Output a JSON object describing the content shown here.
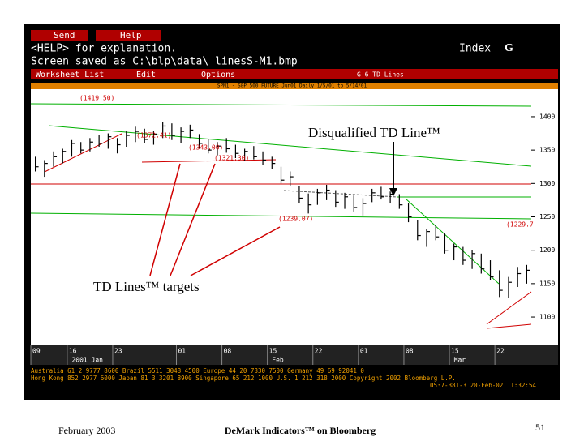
{
  "menu": {
    "send": "Send",
    "help": "Help"
  },
  "info_line": "<HELP> for explanation.",
  "saved_line": "Screen saved as C:\\blp\\data\\ linesS-M1.bmp",
  "index_label": "Index",
  "index_key": "G",
  "toolbar": {
    "worksheet": "Worksheet List",
    "edit": "Edit",
    "options": "Options",
    "page": "G 6   TD Lines"
  },
  "chart_data": {
    "type": "ohlc",
    "title": "SPM1 - S&P 500 FUTURE Jun01 Daily 1/5/01 to 5/14/01",
    "categories": [
      "09",
      null,
      null,
      null,
      "16",
      null,
      null,
      null,
      null,
      "23",
      null,
      null,
      null,
      null,
      null,
      null,
      "01",
      null,
      null,
      null,
      null,
      "08",
      null,
      null,
      null,
      null,
      "15",
      null,
      null,
      null,
      null,
      "22",
      null,
      null,
      null,
      null,
      "01",
      null,
      null,
      null,
      null,
      "08",
      null,
      null,
      null,
      null,
      "15",
      null,
      null,
      null,
      null,
      "22",
      null,
      null,
      null
    ],
    "x_group_labels": [
      {
        "label": "2001 Jan",
        "index": 4
      },
      {
        "label": "Feb",
        "index": 26
      },
      {
        "label": "Mar",
        "index": 46
      }
    ],
    "high": [
      1340,
      1335,
      1348,
      1352,
      1365,
      1362,
      1368,
      1372,
      1375,
      1368,
      1378,
      1385,
      1382,
      1378,
      1392,
      1390,
      1384,
      1388,
      1374,
      1366,
      1362,
      1368,
      1358,
      1352,
      1356,
      1348,
      1340,
      1325,
      1318,
      1296,
      1285,
      1292,
      1298,
      1290,
      1286,
      1282,
      1278,
      1292,
      1295,
      1288,
      1284,
      1270,
      1245,
      1232,
      1238,
      1225,
      1210,
      1205,
      1200,
      1195,
      1185,
      1170,
      1160,
      1175,
      1178
    ],
    "low": [
      1318,
      1310,
      1325,
      1330,
      1340,
      1345,
      1348,
      1355,
      1352,
      1345,
      1355,
      1362,
      1360,
      1358,
      1368,
      1365,
      1360,
      1368,
      1352,
      1345,
      1342,
      1346,
      1338,
      1334,
      1336,
      1328,
      1322,
      1300,
      1296,
      1270,
      1255,
      1268,
      1275,
      1265,
      1262,
      1258,
      1252,
      1272,
      1276,
      1270,
      1262,
      1242,
      1215,
      1205,
      1215,
      1195,
      1185,
      1178,
      1172,
      1165,
      1155,
      1130,
      1128,
      1145,
      1150
    ],
    "close": [
      1325,
      1330,
      1340,
      1348,
      1360,
      1350,
      1362,
      1360,
      1370,
      1358,
      1372,
      1378,
      1366,
      1374,
      1386,
      1372,
      1378,
      1380,
      1360,
      1350,
      1356,
      1352,
      1345,
      1348,
      1340,
      1335,
      1330,
      1305,
      1310,
      1278,
      1268,
      1286,
      1290,
      1272,
      1280,
      1264,
      1270,
      1286,
      1280,
      1284,
      1268,
      1250,
      1222,
      1228,
      1220,
      1200,
      1205,
      1185,
      1195,
      1172,
      1160,
      1140,
      1152,
      1165,
      1170
    ],
    "color": "#000000",
    "ylim": [
      1060,
      1440
    ],
    "yticks": [
      1100,
      1150,
      1200,
      1250,
      1300,
      1350,
      1400
    ],
    "targets": [
      "(1419.50)",
      "(1372.41)",
      "(1343.00)",
      "(1321.30)",
      "(1239.07)",
      "(1229.7"
    ]
  },
  "footer_lines": [
    "Australia 61 2 9777 8600   Brazil 5511 3048 4500   Europe 44 20 7330 7500   Germany 49 69 92041 0",
    "Hong Kong 852 2977 6000 Japan 81 3 3201 8900 Singapore 65 212 1000 U.S. 1 212 318 2000   Copyright 2002 Bloomberg L.P.",
    "0537-381-3 20-Feb-02 11:32:54"
  ],
  "annotations": {
    "disqualified": "Disqualified TD Line™",
    "targets": "TD Lines™ targets"
  },
  "slide_footer": {
    "date": "February 2003",
    "title": "DeMark Indicators™ on Bloomberg",
    "page": "51"
  }
}
